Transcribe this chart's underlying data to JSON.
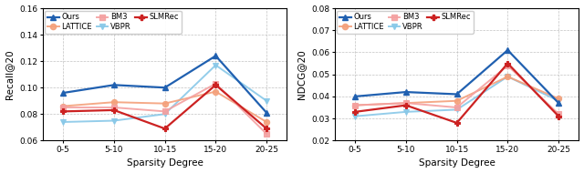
{
  "categories": [
    "0-5",
    "5-10",
    "10-15",
    "15-20",
    "20-25"
  ],
  "left": {
    "ylabel": "Recall@20",
    "ylim": [
      0.06,
      0.16
    ],
    "yticks": [
      0.06,
      0.08,
      0.1,
      0.12,
      0.14,
      0.16
    ],
    "series_order": [
      "Ours",
      "VBPR",
      "LATTICE",
      "BM3",
      "SLMRec"
    ],
    "series": {
      "Ours": {
        "values": [
          0.096,
          0.102,
          0.1,
          0.124,
          0.081
        ],
        "color": "#2060b0",
        "marker": "^",
        "lw": 1.6,
        "alpha": 1.0,
        "ms": 4.5,
        "mew": 1.0
      },
      "VBPR": {
        "values": [
          0.074,
          0.075,
          0.08,
          0.117,
          0.09
        ],
        "color": "#88c8e8",
        "marker": "v",
        "lw": 1.4,
        "alpha": 0.9,
        "ms": 4.5,
        "mew": 0.8
      },
      "LATTICE": {
        "values": [
          0.086,
          0.089,
          0.088,
          0.097,
          0.074
        ],
        "color": "#f4a07a",
        "marker": "o",
        "lw": 1.4,
        "alpha": 0.9,
        "ms": 4.5,
        "mew": 0.8
      },
      "BM3": {
        "values": [
          0.085,
          0.085,
          0.082,
          0.103,
          0.065
        ],
        "color": "#f4a0a0",
        "marker": "s",
        "lw": 1.4,
        "alpha": 0.9,
        "ms": 4.5,
        "mew": 0.8
      },
      "SLMRec": {
        "values": [
          0.082,
          0.083,
          0.069,
          0.102,
          0.069
        ],
        "color": "#cc2222",
        "marker": "P",
        "lw": 1.6,
        "alpha": 1.0,
        "ms": 4.5,
        "mew": 0.8
      }
    }
  },
  "right": {
    "ylabel": "NDCG@20",
    "ylim": [
      0.02,
      0.08
    ],
    "yticks": [
      0.02,
      0.03,
      0.04,
      0.05,
      0.06,
      0.07,
      0.08
    ],
    "series_order": [
      "Ours",
      "VBPR",
      "LATTICE",
      "BM3",
      "SLMRec"
    ],
    "series": {
      "Ours": {
        "values": [
          0.04,
          0.042,
          0.041,
          0.061,
          0.037
        ],
        "color": "#2060b0",
        "marker": "^",
        "lw": 1.6,
        "alpha": 1.0,
        "ms": 4.5,
        "mew": 1.0
      },
      "VBPR": {
        "values": [
          0.031,
          0.033,
          0.034,
          0.049,
          0.038
        ],
        "color": "#88c8e8",
        "marker": "v",
        "lw": 1.4,
        "alpha": 0.9,
        "ms": 4.5,
        "mew": 0.8
      },
      "LATTICE": {
        "values": [
          0.036,
          0.037,
          0.038,
          0.049,
          0.039
        ],
        "color": "#f4a07a",
        "marker": "o",
        "lw": 1.4,
        "alpha": 0.9,
        "ms": 4.5,
        "mew": 0.8
      },
      "BM3": {
        "values": [
          0.036,
          0.037,
          0.035,
          0.054,
          0.032
        ],
        "color": "#f4a0a0",
        "marker": "s",
        "lw": 1.4,
        "alpha": 0.9,
        "ms": 4.5,
        "mew": 0.8
      },
      "SLMRec": {
        "values": [
          0.033,
          0.036,
          0.028,
          0.055,
          0.031
        ],
        "color": "#cc2222",
        "marker": "P",
        "lw": 1.6,
        "alpha": 1.0,
        "ms": 4.5,
        "mew": 0.8
      }
    }
  },
  "xlabel": "Sparsity Degree",
  "legend_row1": [
    "Ours",
    "LATTICE",
    "BM3"
  ],
  "legend_row2": [
    "VBPR",
    "SLMRec"
  ],
  "bg_color": "#ffffff"
}
